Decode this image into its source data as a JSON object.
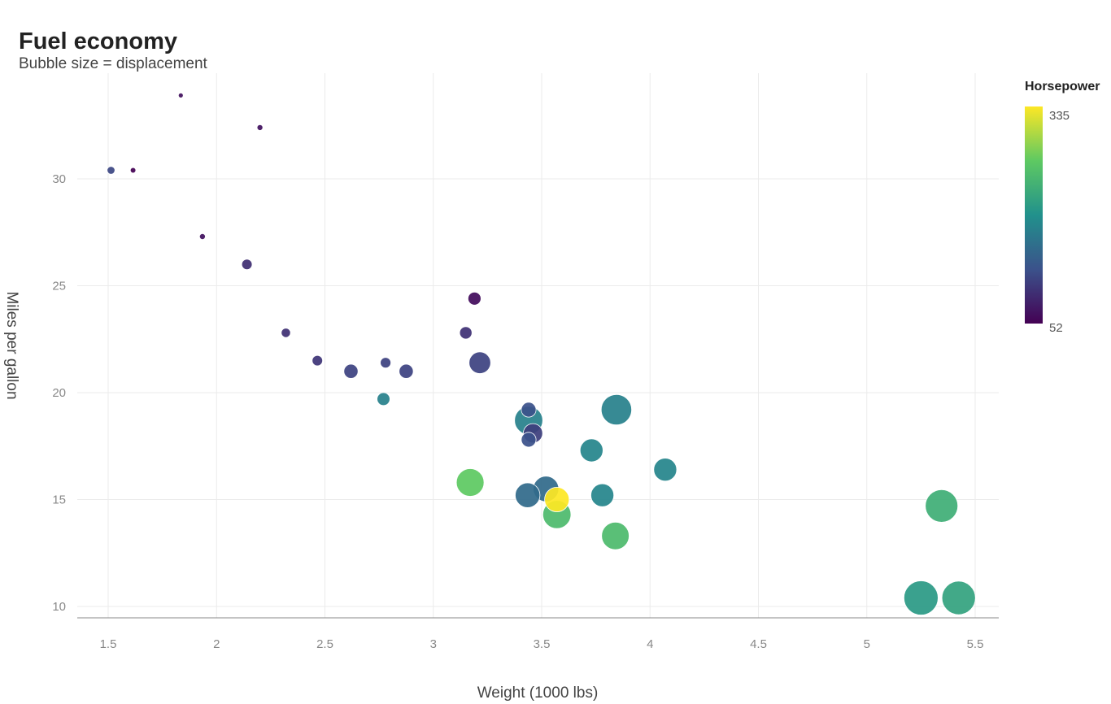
{
  "chart_data": {
    "type": "scatter",
    "title": "Fuel economy",
    "subtitle": "Bubble size = displacement",
    "xlabel": "Weight (1000 lbs)",
    "ylabel": "Miles per gallon",
    "xlim": [
      1.4,
      5.6
    ],
    "ylim": [
      9.5,
      35
    ],
    "xticks": [
      1.5,
      2,
      2.5,
      3,
      3.5,
      4,
      4.5,
      5,
      5.5
    ],
    "xtick_labels": [
      "1.5",
      "2",
      "2.5",
      "3",
      "3.5",
      "4",
      "4.5",
      "5",
      "5.5"
    ],
    "yticks": [
      10,
      15,
      20,
      25,
      30
    ],
    "ytick_labels": [
      "10",
      "15",
      "20",
      "25",
      "30"
    ],
    "grid": true,
    "color_scale": {
      "title": "Horsepower",
      "min": 52,
      "max": 335,
      "min_label": "52",
      "max_label": "335",
      "colors": [
        "#440154",
        "#3b528b",
        "#21918c",
        "#5ec962",
        "#fde725"
      ],
      "placement": "right"
    },
    "size_variable": "displacement",
    "points": [
      {
        "x": 1.513,
        "y": 30.4,
        "hp": 113,
        "disp": 95.1
      },
      {
        "x": 1.615,
        "y": 30.4,
        "hp": 52,
        "disp": 75.7
      },
      {
        "x": 1.835,
        "y": 33.9,
        "hp": 65,
        "disp": 71.1
      },
      {
        "x": 1.935,
        "y": 27.3,
        "hp": 66,
        "disp": 79
      },
      {
        "x": 2.14,
        "y": 26.0,
        "hp": 91,
        "disp": 120.3
      },
      {
        "x": 2.2,
        "y": 32.4,
        "hp": 66,
        "disp": 78.7
      },
      {
        "x": 2.32,
        "y": 22.8,
        "hp": 93,
        "disp": 108
      },
      {
        "x": 2.465,
        "y": 21.5,
        "hp": 97,
        "disp": 120.1
      },
      {
        "x": 2.62,
        "y": 21.0,
        "hp": 110,
        "disp": 160
      },
      {
        "x": 2.77,
        "y": 19.7,
        "hp": 175,
        "disp": 145
      },
      {
        "x": 2.78,
        "y": 21.4,
        "hp": 109,
        "disp": 121
      },
      {
        "x": 2.875,
        "y": 21.0,
        "hp": 110,
        "disp": 160
      },
      {
        "x": 3.15,
        "y": 22.8,
        "hp": 95,
        "disp": 140.8
      },
      {
        "x": 3.17,
        "y": 15.8,
        "hp": 264,
        "disp": 351
      },
      {
        "x": 3.19,
        "y": 24.4,
        "hp": 62,
        "disp": 146.7
      },
      {
        "x": 3.215,
        "y": 21.4,
        "hp": 110,
        "disp": 258
      },
      {
        "x": 3.435,
        "y": 15.2,
        "hp": 150,
        "disp": 304
      },
      {
        "x": 3.44,
        "y": 18.7,
        "hp": 175,
        "disp": 360
      },
      {
        "x": 3.44,
        "y": 19.2,
        "hp": 123,
        "disp": 167.6
      },
      {
        "x": 3.44,
        "y": 17.8,
        "hp": 123,
        "disp": 167.6
      },
      {
        "x": 3.46,
        "y": 18.1,
        "hp": 105,
        "disp": 225
      },
      {
        "x": 3.52,
        "y": 15.5,
        "hp": 150,
        "disp": 318
      },
      {
        "x": 3.57,
        "y": 14.3,
        "hp": 245,
        "disp": 360
      },
      {
        "x": 3.57,
        "y": 15.0,
        "hp": 335,
        "disp": 301
      },
      {
        "x": 3.73,
        "y": 17.3,
        "hp": 180,
        "disp": 275.8
      },
      {
        "x": 3.78,
        "y": 15.2,
        "hp": 180,
        "disp": 275.8
      },
      {
        "x": 3.84,
        "y": 13.3,
        "hp": 245,
        "disp": 350
      },
      {
        "x": 3.845,
        "y": 19.2,
        "hp": 175,
        "disp": 400
      },
      {
        "x": 4.07,
        "y": 16.4,
        "hp": 180,
        "disp": 275.8
      },
      {
        "x": 5.25,
        "y": 10.4,
        "hp": 205,
        "disp": 472
      },
      {
        "x": 5.345,
        "y": 14.7,
        "hp": 230,
        "disp": 440
      },
      {
        "x": 5.424,
        "y": 10.4,
        "hp": 215,
        "disp": 460
      }
    ]
  }
}
